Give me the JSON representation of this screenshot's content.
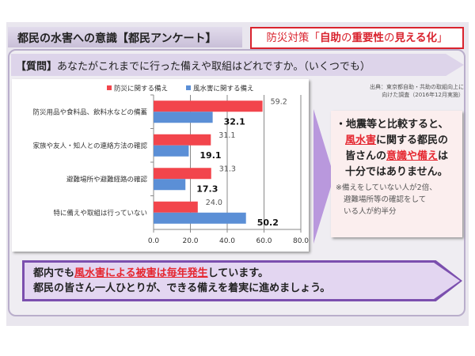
{
  "header": {
    "title": "都民の水害への意識【都民アンケート】",
    "tag_prefix": "防災対策「",
    "tag_bold1": "自助",
    "tag_mid1": "の",
    "tag_bold2": "重要性",
    "tag_mid2": "の",
    "tag_bold3": "見える化",
    "tag_suffix": "」"
  },
  "question": {
    "label": "【質問】",
    "text": "あなたがこれまでに行った備えや取組はどれですか。（いくつでも）"
  },
  "source": {
    "line1": "出典：東京都自助・共助の取組向上に",
    "line2": "向けた調査（2016年12月実施）"
  },
  "note": {
    "l1": "・地震等と比較すると、",
    "l2_hl": "風水害",
    "l2": "に関する都民の",
    "l3a": "皆さんの",
    "l3_hl": "意識や備え",
    "l3b": "は",
    "l4": "十分ではありません。",
    "sub1": "※備えをしていない人が2倍、",
    "sub2": "避難場所等の確認をして",
    "sub3": "いる人が約半分"
  },
  "bottom": {
    "l1a": "都内でも",
    "l1_hl": "風水害による被害は毎年発生",
    "l1b": "しています。",
    "l2": "都民の皆さん一人ひとりが、できる備えを着実に進めましょう。"
  },
  "colors": {
    "red": "#f2454c",
    "blue": "#5b8fd6",
    "accent": "#d9232e",
    "purple": "#b998dd"
  },
  "chart_data": {
    "type": "bar",
    "orientation": "horizontal",
    "categories": [
      "防災用品や食料品、飲料水などの備蓄",
      "家族や友人・知人との連絡方法の確認",
      "避難場所や避難経路の確認",
      "特に備えや取組は行っていない"
    ],
    "series": [
      {
        "name": "防災に関する備え",
        "values": [
          59.2,
          31.1,
          31.3,
          24.0
        ],
        "labels": [
          "59.2",
          "31.1",
          "31.3",
          "24.0"
        ]
      },
      {
        "name": "風水害に関する備え",
        "values": [
          32.1,
          19.1,
          17.3,
          50.2
        ],
        "labels": [
          "32.1",
          "19.1",
          "17.3",
          "50.2"
        ]
      }
    ],
    "xlim": [
      0,
      80
    ],
    "ticks": [
      "0.0",
      "20.0",
      "40.0",
      "60.0",
      "80.0"
    ],
    "grid": true,
    "legend": "top"
  }
}
